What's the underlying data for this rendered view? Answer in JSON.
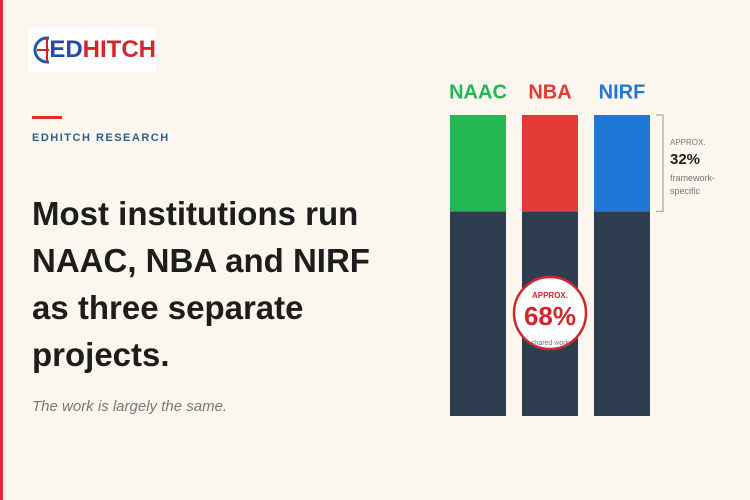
{
  "logo": {
    "part_a": "ED",
    "part_b": "HITCH"
  },
  "eyebrow": "EDHITCH RESEARCH",
  "headline_lines": [
    "Most institutions run",
    "NAAC, NBA and NIRF",
    "as three separate",
    "projects."
  ],
  "subtitle": "The work is largely the same.",
  "chart_data": {
    "type": "bar",
    "stacked": true,
    "categories": [
      "NAAC",
      "NBA",
      "NIRF"
    ],
    "ylim": [
      0,
      100
    ],
    "series": [
      {
        "name": "shared work",
        "color": "#2e3d4f",
        "values": [
          68,
          68,
          68
        ],
        "callout": {
          "prefix": "APPROX.",
          "value_label": "68%"
        }
      },
      {
        "name": "framework-specific",
        "colors": [
          "#22b752",
          "#e33a36",
          "#1f78d6"
        ],
        "values": [
          32,
          32,
          32
        ],
        "callout": {
          "prefix": "APPROX.",
          "value_label": "32%"
        }
      }
    ]
  }
}
